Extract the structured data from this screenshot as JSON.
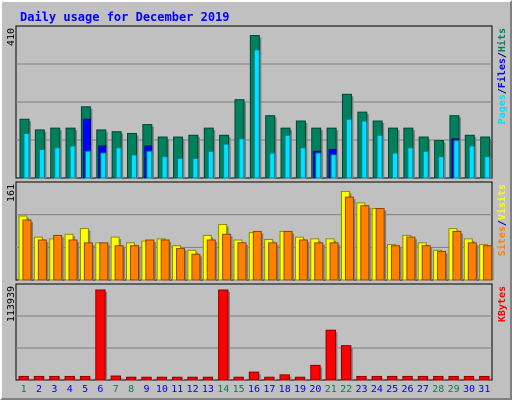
{
  "chart_data": {
    "type": "bar",
    "title": "Daily usage for December 2019",
    "categories": [
      "1",
      "2",
      "3",
      "4",
      "5",
      "6",
      "7",
      "8",
      "9",
      "10",
      "11",
      "12",
      "13",
      "14",
      "15",
      "16",
      "17",
      "18",
      "19",
      "20",
      "21",
      "22",
      "23",
      "24",
      "25",
      "26",
      "27",
      "28",
      "29",
      "30",
      "31"
    ],
    "weekend_days": [
      "1",
      "7",
      "8",
      "14",
      "15",
      "21",
      "22",
      "28",
      "29"
    ],
    "panels": [
      {
        "name": "hits-files-pages",
        "ylim": [
          0,
          410
        ],
        "ytick": "410",
        "right_labels": [
          "Pages",
          "/",
          "Files",
          "/",
          "Hits"
        ],
        "series": [
          {
            "name": "Hits",
            "color": "#00805c",
            "values": [
              165,
              135,
              140,
              140,
              200,
              135,
              130,
              125,
              150,
              115,
              115,
              120,
              140,
              120,
              220,
              400,
              175,
              140,
              160,
              140,
              140,
              235,
              185,
              160,
              140,
              140,
              115,
              105,
              175,
              120,
              115
            ]
          },
          {
            "name": "Files",
            "color": "#0000ff",
            "values": [
              0,
              0,
              0,
              0,
              165,
              90,
              0,
              0,
              90,
              0,
              0,
              0,
              0,
              0,
              0,
              0,
              0,
              0,
              0,
              75,
              80,
              0,
              0,
              0,
              0,
              0,
              0,
              0,
              110,
              0,
              0
            ]
          },
          {
            "name": "Pages",
            "color": "#00e0ff",
            "values": [
              125,
              80,
              85,
              90,
              75,
              70,
              85,
              65,
              75,
              60,
              55,
              55,
              75,
              95,
              110,
              360,
              70,
              120,
              85,
              70,
              65,
              165,
              160,
              120,
              70,
              85,
              75,
              60,
              105,
              90,
              60
            ]
          }
        ]
      },
      {
        "name": "visits-sites",
        "ylim": [
          0,
          161
        ],
        "ytick": "161",
        "right_labels": [
          "Sites",
          "/",
          "Visits"
        ],
        "series": [
          {
            "name": "Visits",
            "color": "#ffff00",
            "values": [
              112,
              75,
              72,
              80,
              90,
              65,
              75,
              65,
              68,
              72,
              60,
              52,
              78,
              97,
              70,
              83,
              71,
              85,
              75,
              72,
              72,
              155,
              135,
              125,
              62,
              78,
              65,
              52,
              90,
              72,
              62
            ]
          },
          {
            "name": "Sites",
            "color": "#ff8000",
            "values": [
              105,
              70,
              78,
              70,
              65,
              65,
              60,
              60,
              70,
              70,
              55,
              45,
              70,
              80,
              65,
              85,
              65,
              85,
              70,
              65,
              65,
              145,
              130,
              125,
              60,
              75,
              60,
              50,
              85,
              65,
              60
            ]
          }
        ]
      },
      {
        "name": "kbytes",
        "ylim": [
          0,
          113939
        ],
        "ytick": "113939",
        "right_labels": [
          "KBytes"
        ],
        "series": [
          {
            "name": "KBytes",
            "color": "#ff0000",
            "values": [
              4500,
              4500,
              4500,
              4500,
              4500,
              113939,
              5000,
              3500,
              3500,
              3500,
              3500,
              3500,
              3500,
              113939,
              3500,
              10000,
              3500,
              6500,
              3500,
              18500,
              63000,
              43500,
              4500,
              4500,
              4500,
              4500,
              4500,
              4500,
              4500,
              4500,
              4500
            ]
          }
        ]
      }
    ]
  },
  "colors": {
    "background": "#c0c0c0",
    "plot": "#c0c0c0",
    "grid": "#808080",
    "border": "#000000",
    "title": "#0000ff",
    "day_label": "#0000ff",
    "weekend_label": "#00805c"
  }
}
